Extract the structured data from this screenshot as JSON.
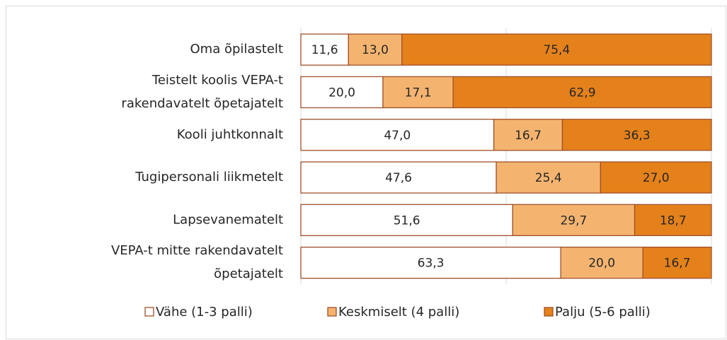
{
  "chart_data": {
    "type": "stacked-bar-horizontal",
    "categories": [
      "Oma õpilastelt",
      [
        "Teistelt koolis VEPA-t",
        "rakendavatelt õpetajatelt"
      ],
      "Kooli juhtkonnalt",
      "Tugipersonali liikmetelt",
      "Lapsevanematelt",
      [
        "VEPA-t mitte rakendavatelt",
        "õpetajatelt"
      ]
    ],
    "series": [
      {
        "name": "Vähe (1-3 palli)",
        "color": "#ffffff",
        "values": [
          11.6,
          20.0,
          47.0,
          47.6,
          51.6,
          63.3
        ],
        "value_labels": [
          "11,6",
          "20,0",
          "47,0",
          "47,6",
          "51,6",
          "63,3"
        ]
      },
      {
        "name": "Keskmiselt (4 palli)",
        "color": "#f4b470",
        "values": [
          13.0,
          17.1,
          16.7,
          25.4,
          29.7,
          20.0
        ],
        "value_labels": [
          "13,0",
          "17,1",
          "16,7",
          "25,4",
          "29,7",
          "20,0"
        ]
      },
      {
        "name": "Palju (5-6 palli)",
        "color": "#e5811b",
        "values": [
          75.4,
          62.9,
          36.3,
          27.0,
          18.7,
          16.7
        ],
        "value_labels": [
          "75,4",
          "62,9",
          "36,3",
          "27,0",
          "18,7",
          "16,7"
        ]
      }
    ],
    "xlim": [
      0,
      100
    ],
    "xticks": [
      0,
      50,
      100
    ],
    "grid": true,
    "edge_color": "#a0502a"
  }
}
